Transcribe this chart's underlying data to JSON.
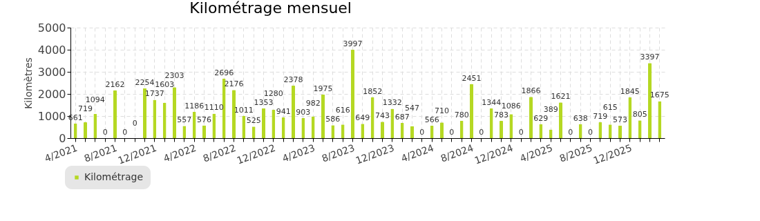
{
  "chart_data": {
    "type": "bar",
    "title": "Kilométrage mensuel",
    "ylabel": "Kilomètres",
    "categories": [
      "4/2021",
      null,
      null,
      null,
      "8/2021",
      null,
      null,
      null,
      "12/2021",
      null,
      null,
      null,
      "4/2022",
      null,
      null,
      null,
      "8/2022",
      null,
      null,
      null,
      "12/2022",
      null,
      null,
      null,
      "4/2023",
      null,
      null,
      null,
      "8/2023",
      null,
      null,
      null,
      "12/2023",
      null,
      null,
      null,
      "4/2024",
      null,
      null,
      null,
      "8/2024",
      null,
      null,
      null,
      "12/2024",
      null,
      null,
      null,
      "4/2025",
      null,
      null,
      null,
      "8/2025",
      null,
      null,
      null,
      "12/2025",
      null,
      null,
      null
    ],
    "series": [
      {
        "name": "Kilométrage",
        "color": "#b5d823",
        "values": [
          661,
          719,
          1094,
          0,
          2162,
          0,
          0,
          2254,
          1737,
          1603,
          2303,
          557,
          1186,
          576,
          1110,
          2696,
          2176,
          1011,
          525,
          1353,
          1280,
          941,
          2378,
          903,
          982,
          1975,
          586,
          616,
          3997,
          649,
          1852,
          743,
          1332,
          687,
          547,
          0,
          566,
          710,
          0,
          780,
          2451,
          0,
          1344,
          783,
          1086,
          0,
          1866,
          629,
          389,
          1621,
          0,
          638,
          0,
          719,
          615,
          573,
          1845,
          805,
          3397,
          1675
        ]
      }
    ],
    "ylim": [
      0,
      5000
    ],
    "yticks": [
      0,
      1000,
      2000,
      3000,
      4000,
      5000
    ],
    "grid": true,
    "data_labels": true,
    "legend": "bottom left"
  }
}
